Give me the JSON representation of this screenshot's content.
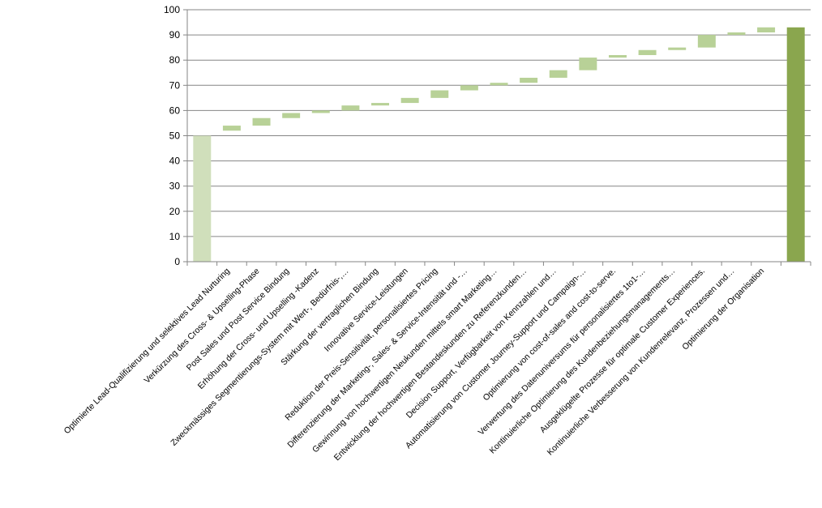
{
  "chart_data": {
    "type": "bar",
    "subtype": "waterfall",
    "title": "",
    "xlabel": "",
    "ylabel": "",
    "ylim": [
      0,
      100
    ],
    "yticks": [
      0,
      10,
      20,
      30,
      40,
      50,
      60,
      70,
      80,
      90,
      100
    ],
    "grid": true,
    "legend": "none",
    "colors": {
      "start": "#d0dfbb",
      "step": "#b8d197",
      "total": "#8aa64e",
      "grid": "#868686"
    },
    "categories": [
      "",
      "Optimierte Lead-Qualifizierung und selektives Lead Nurturing",
      "Verkürzung des Cross- & Upselling-Phase",
      "Post Sales und Post Service Bindung",
      "Erhöhung der Cross- und Upselling -Kadenz",
      "Zweckmässiges Segmentierungs-System mit Wert-, Bedürfnis-,…",
      "Stärkung der vertraglichen Bindung",
      "Innovative Service-Leistungen",
      "Reduktion der Preis-Sensitivität, personalisiertes Pricing",
      "Differenzierung der Marketing-, Sales- & Service-Intensität und -…",
      "Gewinnung von hochwertigen Neukunden mittels smart Marketing…",
      "Entwicklung der hochwertigen Bestandeskunden zu Referenzkunden…",
      "Decision Support, Verfügbarkeit von Kennzahlen und…",
      "Automatisierung von Customer Journey-Support  und Campaign-…",
      "Optimierung von cost-of-sales and cost-to-serve.",
      "Verwertung des Datenuniversums für personalisiertes 1to1-…",
      "Kontinuierliche Optimierung des Kundenbeziehungsmanagements…",
      "Ausgeklügelte Prozesse für optimale Customer Experiences.",
      "Kontinuierliche Verbesserung von Kundenrelevanz, Prozessen und…",
      "Optimierung der Organisation",
      ""
    ],
    "bars": [
      {
        "kind": "start",
        "low": 0,
        "high": 50
      },
      {
        "kind": "step",
        "low": 52,
        "high": 54
      },
      {
        "kind": "step",
        "low": 54,
        "high": 57
      },
      {
        "kind": "step",
        "low": 57,
        "high": 59
      },
      {
        "kind": "step",
        "low": 59,
        "high": 60
      },
      {
        "kind": "step",
        "low": 60,
        "high": 62
      },
      {
        "kind": "step",
        "low": 62,
        "high": 63
      },
      {
        "kind": "step",
        "low": 63,
        "high": 65
      },
      {
        "kind": "step",
        "low": 65,
        "high": 68
      },
      {
        "kind": "step",
        "low": 68,
        "high": 70
      },
      {
        "kind": "step",
        "low": 70,
        "high": 71
      },
      {
        "kind": "step",
        "low": 71,
        "high": 73
      },
      {
        "kind": "step",
        "low": 73,
        "high": 76
      },
      {
        "kind": "step",
        "low": 76,
        "high": 81
      },
      {
        "kind": "step",
        "low": 81,
        "high": 82
      },
      {
        "kind": "step",
        "low": 82,
        "high": 84
      },
      {
        "kind": "step",
        "low": 84,
        "high": 85
      },
      {
        "kind": "step",
        "low": 85,
        "high": 90
      },
      {
        "kind": "step",
        "low": 90,
        "high": 91
      },
      {
        "kind": "step",
        "low": 91,
        "high": 93
      },
      {
        "kind": "total",
        "low": 0,
        "high": 93
      }
    ]
  }
}
